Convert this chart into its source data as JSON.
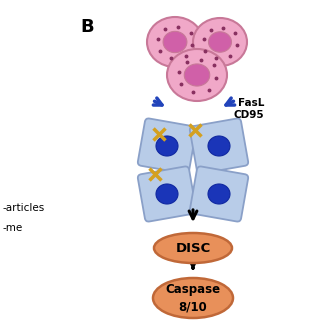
{
  "title": "B",
  "background_color": "#ffffff",
  "nk_cell_color": "#f0a8c8",
  "nk_cell_edge": "#c87898",
  "nk_nucleus_color": "#d060a8",
  "target_cell_color": "#b8cce8",
  "target_cell_edge": "#8aA0c8",
  "target_nucleus_color": "#1a35b8",
  "arrow_color": "#2244bb",
  "star_color": "#d4a020",
  "disc_color": "#e8905a",
  "disc_edge": "#c06838",
  "caspase_color": "#e8905a",
  "caspase_edge": "#c06838",
  "text_fasl": "FasL",
  "text_cd95": "CD95",
  "text_disc": "DISC",
  "text_caspase": "Caspase\n8/10",
  "text_particles": "-articles",
  "text_me": "-me",
  "dot_color": "#883060"
}
